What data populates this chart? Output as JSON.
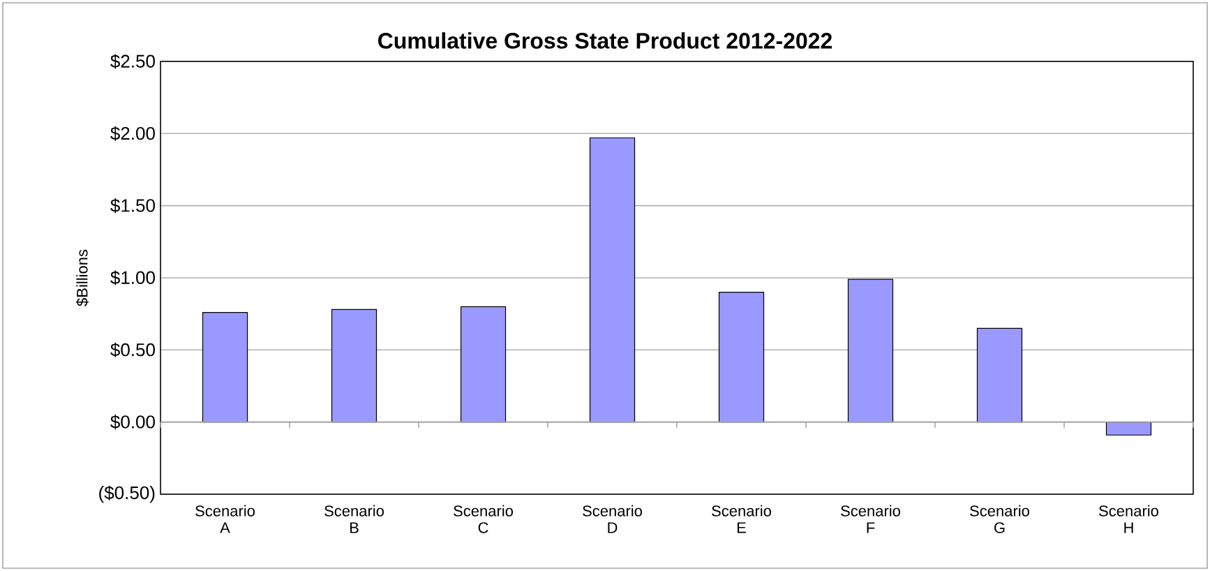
{
  "chart_data": {
    "type": "bar",
    "title": "Cumulative Gross State Product 2012-2022",
    "ylabel": "$Billions",
    "categories": [
      "Scenario A",
      "Scenario B",
      "Scenario C",
      "Scenario D",
      "Scenario E",
      "Scenario F",
      "Scenario G",
      "Scenario H"
    ],
    "values": [
      0.76,
      0.78,
      0.8,
      1.97,
      0.9,
      0.99,
      0.65,
      -0.09
    ],
    "color": "#9999ff",
    "ylim": [
      -0.5,
      2.5
    ],
    "yticks": [
      {
        "value": -0.5,
        "label": "($0.50)"
      },
      {
        "value": 0,
        "label": "$0.00"
      },
      {
        "value": 0.5,
        "label": "$0.50"
      },
      {
        "value": 1,
        "label": "$1.00"
      },
      {
        "value": 1.5,
        "label": "$1.50"
      },
      {
        "value": 2,
        "label": "$2.00"
      },
      {
        "value": 2.5,
        "label": "$2.50"
      }
    ],
    "grid": "y"
  }
}
